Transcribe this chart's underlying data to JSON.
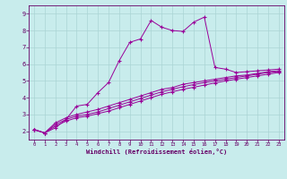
{
  "xlabel": "Windchill (Refroidissement éolien,°C)",
  "bg_color": "#c8ecec",
  "grid_color": "#aad4d4",
  "line_color": "#990099",
  "spine_color": "#660066",
  "xlim": [
    -0.5,
    23.5
  ],
  "ylim": [
    1.5,
    9.5
  ],
  "xticks": [
    0,
    1,
    2,
    3,
    4,
    5,
    6,
    7,
    8,
    9,
    10,
    11,
    12,
    13,
    14,
    15,
    16,
    17,
    18,
    19,
    20,
    21,
    22,
    23
  ],
  "yticks": [
    2,
    3,
    4,
    5,
    6,
    7,
    8,
    9
  ],
  "line1_x": [
    0,
    1,
    2,
    3,
    4,
    5,
    6,
    7,
    8,
    9,
    10,
    11,
    12,
    13,
    14,
    15,
    16,
    17,
    18,
    19,
    20,
    21,
    22,
    23
  ],
  "line1_y": [
    2.1,
    1.9,
    2.2,
    2.7,
    3.5,
    3.6,
    4.3,
    4.9,
    6.2,
    7.3,
    7.5,
    8.6,
    8.2,
    8.0,
    7.95,
    8.5,
    8.8,
    5.8,
    5.7,
    5.5,
    5.55,
    5.6,
    5.65,
    5.7
  ],
  "line2_x": [
    0,
    1,
    2,
    3,
    4,
    5,
    6,
    7,
    8,
    9,
    10,
    11,
    12,
    13,
    14,
    15,
    16,
    17,
    18,
    19,
    20,
    21,
    22,
    23
  ],
  "line2_y": [
    2.1,
    1.9,
    2.5,
    2.8,
    3.0,
    3.15,
    3.3,
    3.5,
    3.7,
    3.9,
    4.1,
    4.3,
    4.5,
    4.6,
    4.8,
    4.9,
    5.0,
    5.1,
    5.2,
    5.3,
    5.35,
    5.45,
    5.55,
    5.6
  ],
  "line3_x": [
    0,
    1,
    2,
    3,
    4,
    5,
    6,
    7,
    8,
    9,
    10,
    11,
    12,
    13,
    14,
    15,
    16,
    17,
    18,
    19,
    20,
    21,
    22,
    23
  ],
  "line3_y": [
    2.1,
    1.9,
    2.4,
    2.7,
    2.9,
    3.0,
    3.15,
    3.35,
    3.55,
    3.75,
    3.95,
    4.15,
    4.35,
    4.5,
    4.65,
    4.78,
    4.9,
    5.0,
    5.1,
    5.2,
    5.3,
    5.4,
    5.5,
    5.55
  ],
  "line4_x": [
    0,
    1,
    2,
    3,
    4,
    5,
    6,
    7,
    8,
    9,
    10,
    11,
    12,
    13,
    14,
    15,
    16,
    17,
    18,
    19,
    20,
    21,
    22,
    23
  ],
  "line4_y": [
    2.1,
    1.9,
    2.3,
    2.6,
    2.8,
    2.9,
    3.05,
    3.2,
    3.4,
    3.6,
    3.8,
    4.0,
    4.2,
    4.35,
    4.5,
    4.62,
    4.75,
    4.88,
    5.0,
    5.1,
    5.2,
    5.3,
    5.4,
    5.5
  ]
}
